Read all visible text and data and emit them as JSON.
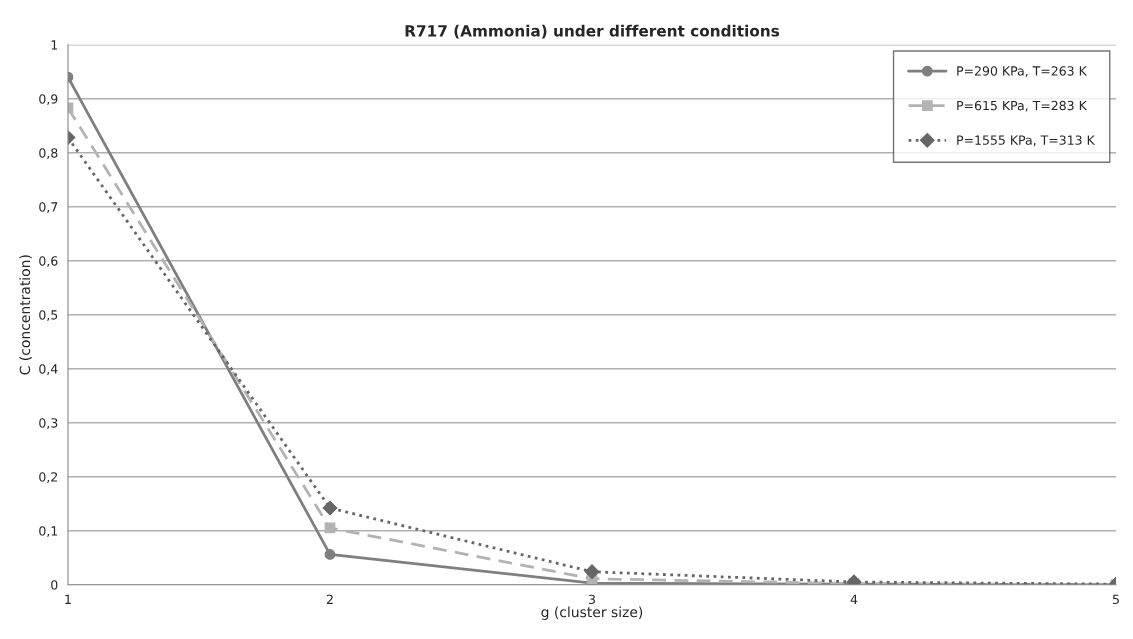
{
  "chart_data": {
    "type": "line",
    "title": "R717 (Ammonia) under different conditions",
    "xlabel": "g (cluster size)",
    "ylabel": "C (concentration)",
    "x": [
      1,
      2,
      3,
      4,
      5
    ],
    "series": [
      {
        "name": "P=290 KPa, T=263 K",
        "color": "#7f7f7f",
        "marker": "circle",
        "line_style": "solid",
        "values": [
          0.94,
          0.056,
          0.003,
          0.001,
          0.0
        ]
      },
      {
        "name": "P=615 KPa, T=283 K",
        "color": "#b3b3b3",
        "marker": "square",
        "line_style": "dashed",
        "values": [
          0.883,
          0.105,
          0.011,
          0.002,
          0.0
        ]
      },
      {
        "name": "P=1555 KPa, T=313 K",
        "color": "#666666",
        "marker": "diamond",
        "line_style": "dotted",
        "values": [
          0.828,
          0.142,
          0.024,
          0.005,
          0.001
        ]
      }
    ],
    "xlim": [
      1,
      5
    ],
    "xticks": [
      1,
      2,
      3,
      4,
      5
    ],
    "ylim": [
      0,
      1
    ],
    "yticks": [
      0,
      {
        "value": 0.1,
        "label": "0,1"
      },
      {
        "value": 0.2,
        "label": "0,2"
      },
      {
        "value": 0.3,
        "label": "0,3"
      },
      {
        "value": 0.4,
        "label": "0,4"
      },
      {
        "value": 0.5,
        "label": "0,5"
      },
      {
        "value": 0.6,
        "label": "0,6"
      },
      {
        "value": 0.7,
        "label": "0,7"
      },
      {
        "value": 0.8,
        "label": "0,8"
      },
      {
        "value": 0.9,
        "label": "0,9"
      },
      1
    ],
    "grid": "y",
    "legend": "top right"
  }
}
